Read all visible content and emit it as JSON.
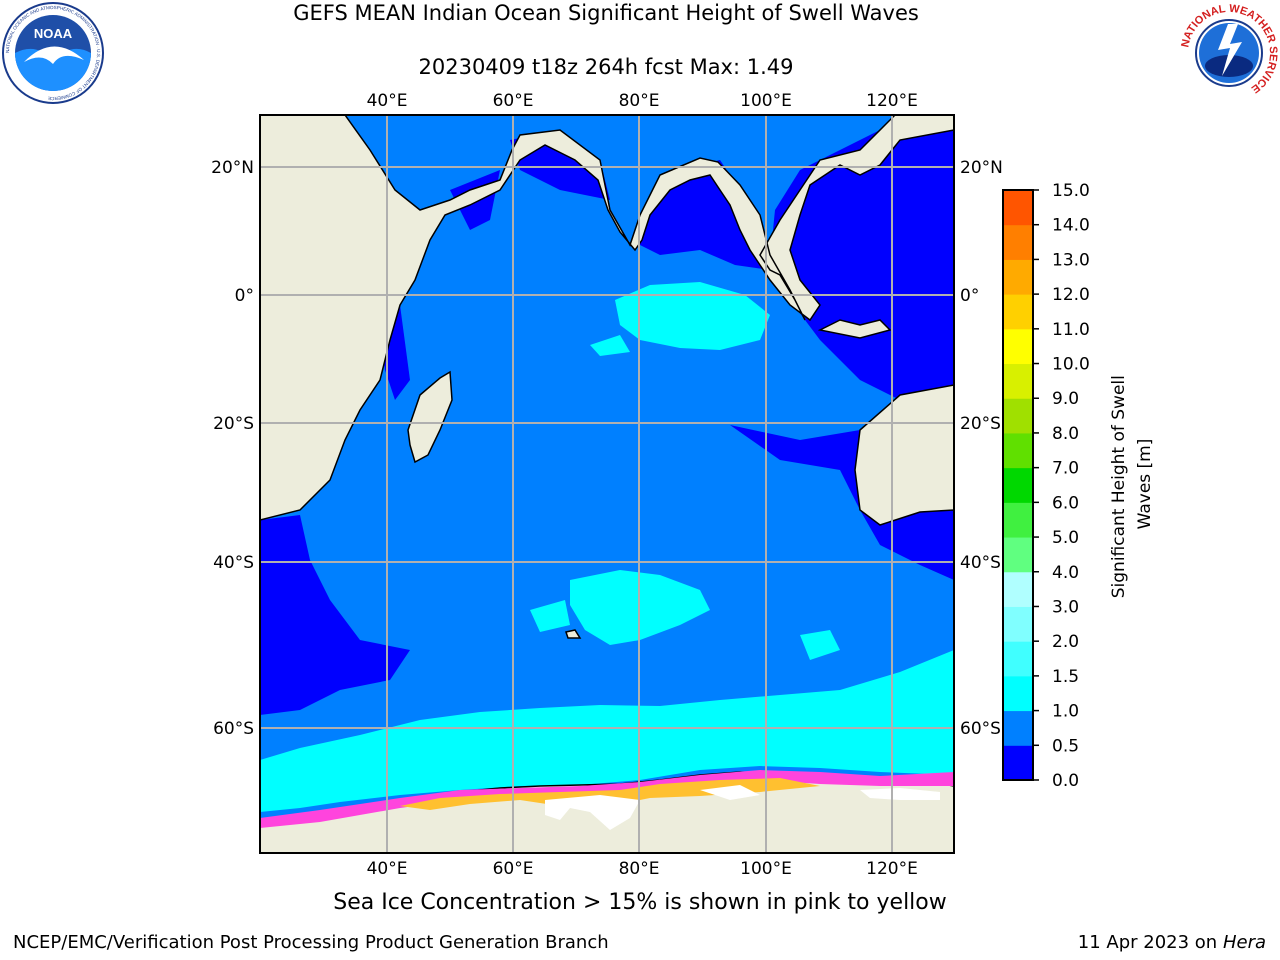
{
  "header": {
    "title_line1": "GEFS MEAN Indian Ocean Significant Height of Swell Waves",
    "title_line2": "20230409 t18z 264h fcst   Max: 1.49"
  },
  "logos": {
    "left": {
      "name": "NOAA",
      "ring_text": "NATIONAL OCEANIC AND ATMOSPHERIC ADMINISTRATION · U.S. DEPARTMENT OF COMMERCE"
    },
    "right": {
      "name": "NATIONAL WEATHER SERVICE"
    }
  },
  "map": {
    "lon_ticks": [
      "40°E",
      "60°E",
      "80°E",
      "100°E",
      "120°E"
    ],
    "lat_ticks": [
      "20°N",
      "0°",
      "20°S",
      "40°S",
      "60°S"
    ],
    "lon_range": [
      20,
      130
    ],
    "lat_range": [
      -73,
      28
    ]
  },
  "colorbar": {
    "label": "Significant Height of Swell Waves [m]",
    "levels": [
      "0.0",
      "0.5",
      "1.0",
      "1.5",
      "2.0",
      "3.0",
      "4.0",
      "5.0",
      "6.0",
      "7.0",
      "8.0",
      "9.0",
      "10.0",
      "11.0",
      "12.0",
      "13.0",
      "14.0",
      "15.0"
    ],
    "colors": [
      "#0000ff",
      "#0080ff",
      "#00ffff",
      "#40ffff",
      "#80ffff",
      "#b0ffff",
      "#60ff80",
      "#40f040",
      "#00d800",
      "#60e000",
      "#a0e000",
      "#d8f000",
      "#ffff00",
      "#ffd000",
      "#ffaa00",
      "#ff7f00",
      "#ff5500",
      "#ff2a00",
      "#ff0000"
    ]
  },
  "colors": {
    "land": "#ededdc",
    "ocean_low": "#0000ff",
    "ocean_main": "#0080ff",
    "ocean_swell": "#00ffff",
    "sea_ice_pink": "#ff44dd",
    "sea_ice_yellow": "#ffc030",
    "grid": "#b0b0b0"
  },
  "footer": {
    "note": "Sea Ice Concentration > 15% is shown in pink to yellow",
    "left": "NCEP/EMC/Verification Post Processing Product Generation Branch",
    "right_date": "11 Apr 2023 on ",
    "right_host": "Hera"
  }
}
